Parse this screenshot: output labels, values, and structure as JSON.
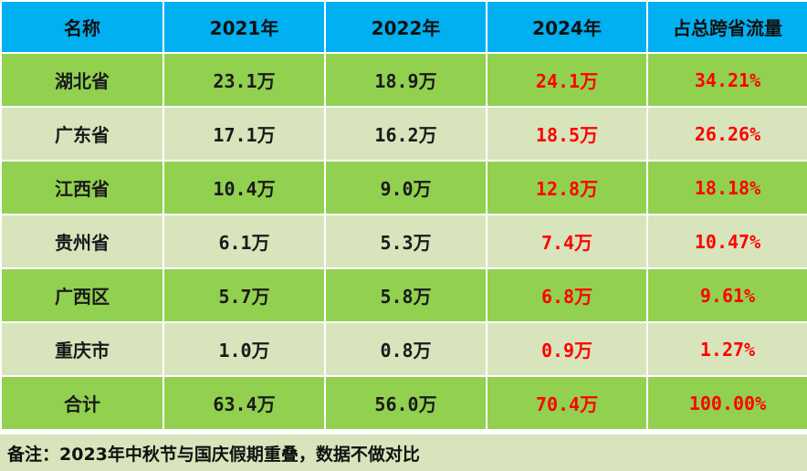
{
  "table": {
    "headers": [
      "名称",
      "2021年",
      "2022年",
      "2024年",
      "占总跨省流量"
    ],
    "rows": [
      [
        "湖北省",
        "23.1万",
        "18.9万",
        "24.1万",
        "34.21%"
      ],
      [
        "广东省",
        "17.1万",
        "16.2万",
        "18.5万",
        "26.26%"
      ],
      [
        "江西省",
        "10.4万",
        "9.0万",
        "12.8万",
        "18.18%"
      ],
      [
        "贵州省",
        "6.1万",
        "5.3万",
        "7.4万",
        "10.47%"
      ],
      [
        "广西区",
        "5.7万",
        "5.8万",
        "6.8万",
        "9.61%"
      ],
      [
        "重庆市",
        "1.0万",
        "0.8万",
        "0.9万",
        "1.27%"
      ],
      [
        "合计",
        "63.4万",
        "56.0万",
        "70.4万",
        "100.00%"
      ]
    ]
  },
  "note": "备注：2023年中秋节与国庆假期重叠，数据不做对比",
  "colors": {
    "header_bg": "#00b0f0",
    "row_dark": "#92d050",
    "row_light": "#d8e4bc",
    "highlight_text": "#ff0000"
  }
}
